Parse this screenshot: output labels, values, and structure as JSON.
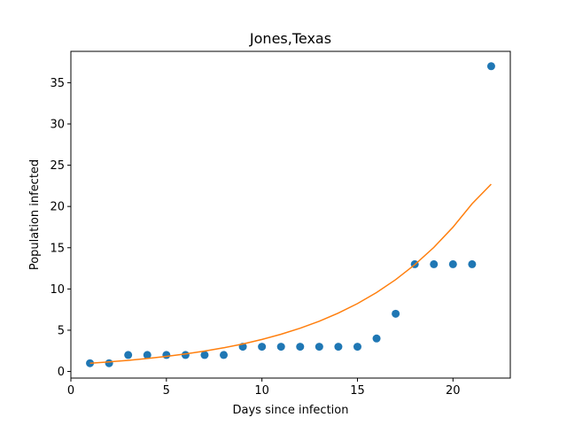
{
  "chart_data": {
    "type": "scatter",
    "title": "Jones,Texas",
    "xlabel": "Days since infection",
    "ylabel": "Population infected",
    "xlim": [
      0,
      23
    ],
    "ylim": [
      -0.8,
      38.8
    ],
    "xticks": [
      0,
      5,
      10,
      15,
      20
    ],
    "yticks": [
      0,
      5,
      10,
      15,
      20,
      25,
      30,
      35
    ],
    "grid": false,
    "series": [
      {
        "type": "scatter",
        "color": "#1f77b4",
        "x": [
          1,
          2,
          3,
          4,
          5,
          6,
          7,
          8,
          9,
          10,
          11,
          12,
          13,
          14,
          15,
          16,
          17,
          18,
          19,
          20,
          21,
          22
        ],
        "y": [
          1,
          1,
          2,
          2,
          2,
          2,
          2,
          2,
          3,
          3,
          3,
          3,
          3,
          3,
          3,
          4,
          7,
          13,
          13,
          13,
          13,
          37
        ]
      },
      {
        "type": "line",
        "color": "#ff7f0e",
        "x": [
          1,
          2,
          3,
          4,
          5,
          6,
          7,
          8,
          9,
          10,
          11,
          12,
          13,
          14,
          15,
          16,
          17,
          18,
          19,
          20,
          21,
          22
        ],
        "y": [
          1.0,
          1.16,
          1.35,
          1.57,
          1.83,
          2.12,
          2.47,
          2.87,
          3.33,
          3.88,
          4.51,
          5.24,
          6.09,
          7.08,
          8.23,
          9.57,
          11.13,
          12.94,
          15.04,
          17.49,
          20.33,
          22.7
        ]
      }
    ]
  }
}
